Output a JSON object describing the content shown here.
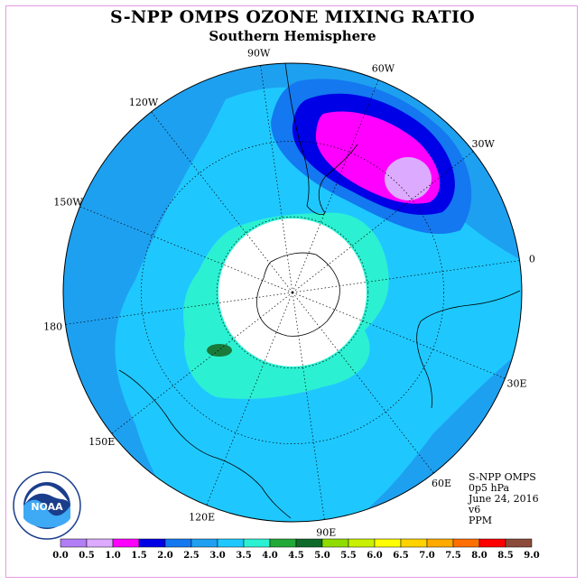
{
  "header": {
    "title": "S-NPP OMPS OZONE MIXING RATIO",
    "subtitle": "Southern Hemisphere"
  },
  "map": {
    "projection": "south-polar-stereographic",
    "longitude_labels": [
      "90W",
      "60W",
      "30W",
      "0",
      "30E",
      "60E",
      "90E",
      "120E",
      "150E",
      "180",
      "150W",
      "120W"
    ],
    "colors": {
      "ocean_base": "#1ec8ff",
      "outer_band": "#1ea0f0",
      "blue_strong": "#0000e6",
      "magenta": "#ff00ff",
      "lavender": "#dcaaff",
      "aqua": "#2cf0d2",
      "green_dark": "#1a7a3a",
      "no_data": "#ffffff"
    }
  },
  "info": {
    "product": "S-NPP OMPS",
    "level": "0p5 hPa",
    "date": "June 24, 2016",
    "version": "v6",
    "units": "PPM"
  },
  "logo": {
    "name": "NOAA",
    "ring_text": "NATIONAL OCEANIC AND ATMOSPHERIC ADMINISTRATION · U.S. DEPARTMENT OF COMMERCE"
  },
  "colorbar": {
    "tick_labels": [
      "0.0",
      "0.5",
      "1.0",
      "1.5",
      "2.0",
      "2.5",
      "3.0",
      "3.5",
      "4.0",
      "4.5",
      "5.0",
      "5.5",
      "6.0",
      "6.5",
      "7.0",
      "7.5",
      "8.0",
      "8.5",
      "9.0"
    ],
    "colors": [
      "#b17ef5",
      "#dcaaff",
      "#ff00ff",
      "#0000e6",
      "#1478f0",
      "#1ea0f0",
      "#1ec8ff",
      "#2cf0d2",
      "#22a838",
      "#0e6a2a",
      "#90dc00",
      "#c8f000",
      "#ffff00",
      "#ffd200",
      "#ffaa00",
      "#ff6e00",
      "#ff0000",
      "#8c4a3a"
    ]
  }
}
